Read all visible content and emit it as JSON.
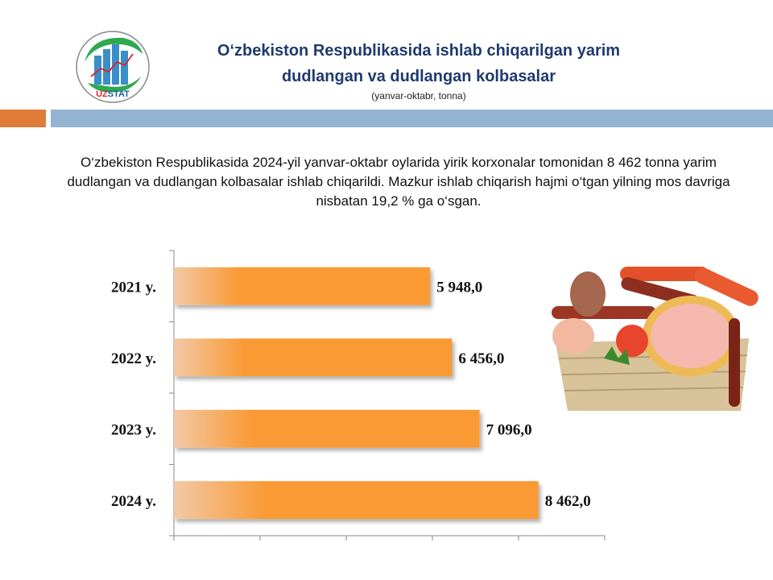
{
  "header": {
    "logo_text": "UZSTAT",
    "title_line1": "O‘zbekiston Respublikasida ishlab chiqarilgan yarim",
    "title_line2": "dudlangan va dudlangan kolbasalar",
    "subtitle": "(yanvar-oktabr, tonna)"
  },
  "paragraph": "O‘zbekiston  Respublikasida 2024-yil yanvar-oktabr oylarida yirik korxonalar tomonidan 8 462 tonna yarim dudlangan  va dudlangan  kolbasalar ishlab chiqarildi. Mazkur ishlab chiqarish  hajmi o‘tgan yilning mos davriga nisbatan 19,2 % ga o‘sgan.",
  "colors": {
    "bar": "#f99a36",
    "bar_fade": "#f2c9a6",
    "title": "#1f3a6e",
    "accent_orange": "#e07b39",
    "accent_blue": "#93b3d2"
  },
  "chart_data": {
    "type": "bar",
    "orientation": "horizontal",
    "categories": [
      "2021 y.",
      "2022 y.",
      "2023 y.",
      "2024 y."
    ],
    "values": [
      5948.0,
      6456.0,
      7096.0,
      8462.0
    ],
    "data_labels": [
      "5 948,0",
      "6 456,0",
      "7 096,0",
      "8 462,0"
    ],
    "xlim": [
      0,
      10000
    ],
    "x_tick_labels_shown": false,
    "grid": false
  }
}
